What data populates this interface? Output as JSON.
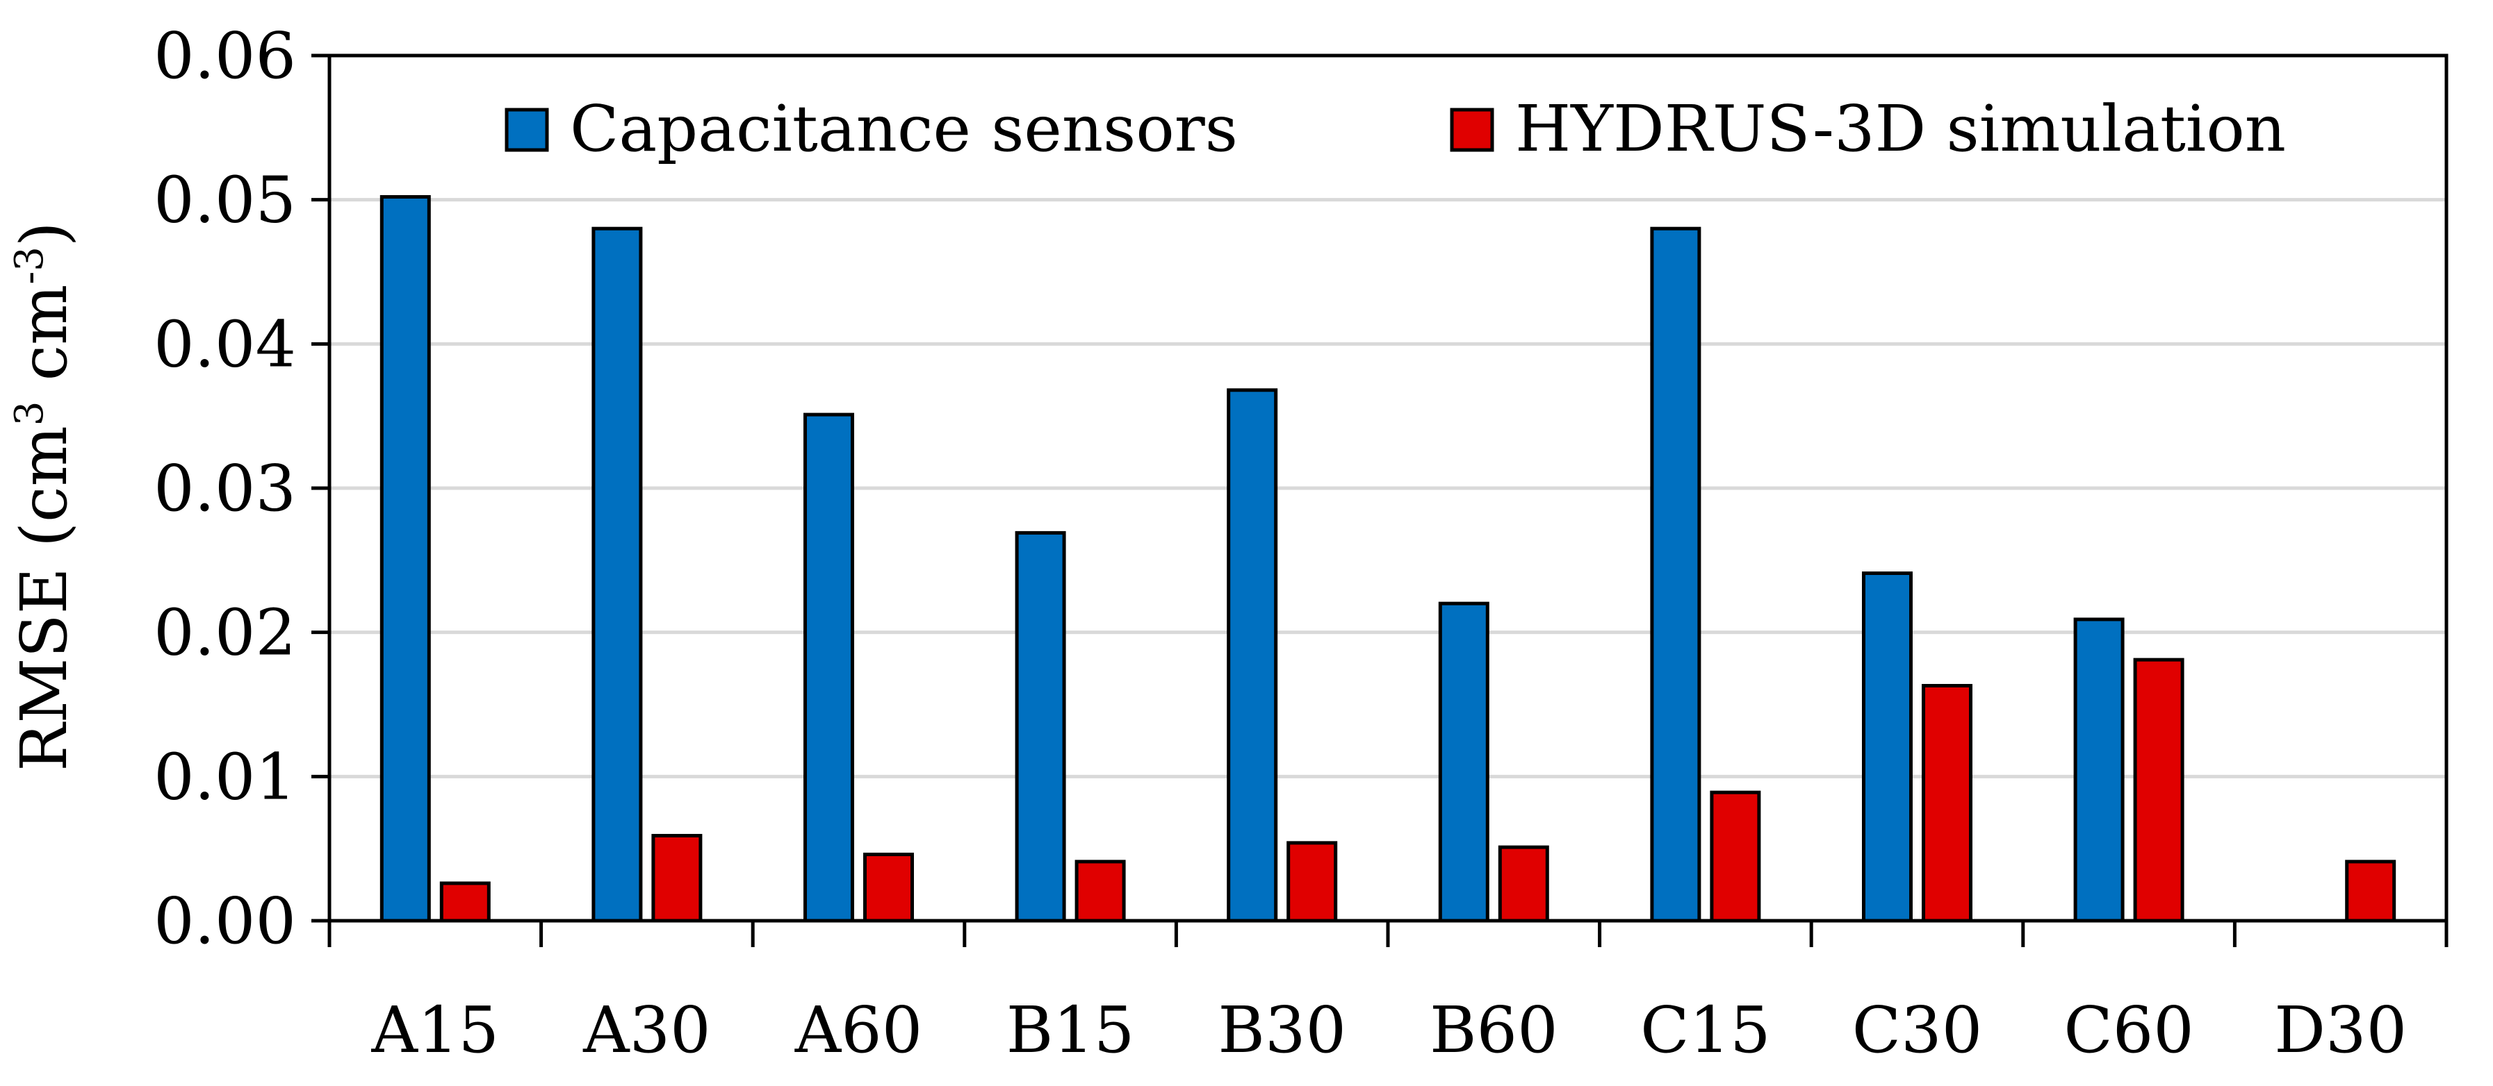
{
  "chart_data": {
    "type": "bar",
    "title": "",
    "xlabel": "",
    "ylabel": "RMSE (cm3 cm-3)",
    "ylabel_parts": {
      "prefix": "RMSE (cm",
      "sup1": "3",
      "middle": " cm",
      "sup2": "-3",
      "suffix": ")"
    },
    "ylim": [
      0,
      0.06
    ],
    "yticks": [
      "0.00",
      "0.01",
      "0.02",
      "0.03",
      "0.04",
      "0.05",
      "0.06"
    ],
    "grid": true,
    "legend_position": "top",
    "categories": [
      "A15",
      "A30",
      "A60",
      "B15",
      "B30",
      "B60",
      "C15",
      "C30",
      "C60",
      "D30"
    ],
    "series": [
      {
        "name": "Capacitance sensors",
        "color": "#0070C0",
        "values": [
          0.0502,
          0.048,
          0.0351,
          0.0269,
          0.0368,
          0.022,
          0.048,
          0.0241,
          0.0209,
          null
        ]
      },
      {
        "name": "HYDRUS-3D simulation",
        "color": "#E00000",
        "values": [
          0.0026,
          0.0059,
          0.0046,
          0.0041,
          0.0054,
          0.0051,
          0.0089,
          0.0163,
          0.0181,
          0.0041
        ]
      }
    ]
  }
}
